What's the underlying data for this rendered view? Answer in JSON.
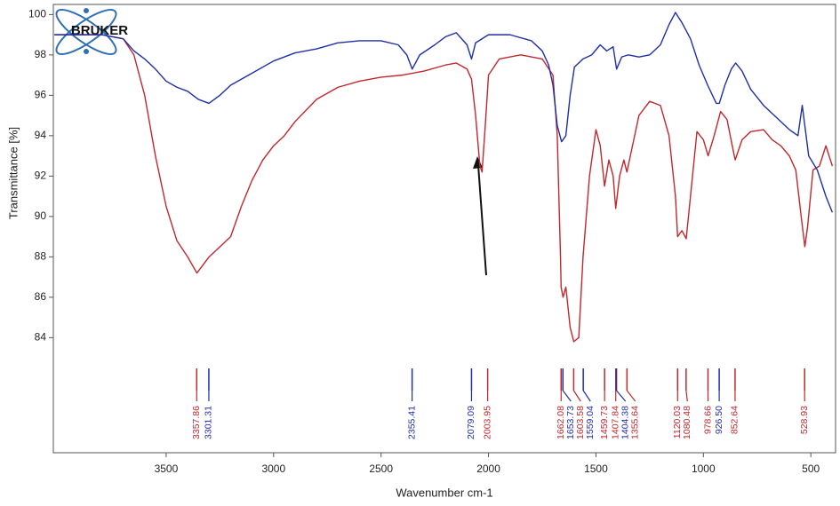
{
  "chart_data": {
    "type": "line",
    "logo_text": "BRUKER",
    "x_label": "Wavenumber cm-1",
    "y_label": "Transmittance [%]",
    "xlim": [
      4025,
      385
    ],
    "ylim": [
      78.3,
      100.5
    ],
    "xticks": [
      3500,
      3000,
      2500,
      2000,
      1500,
      1000,
      500
    ],
    "yticks": [
      84,
      86,
      88,
      90,
      92,
      94,
      96,
      98,
      100
    ],
    "series": [
      {
        "color": "#c0282d",
        "x": [
          4020,
          3800,
          3700,
          3650,
          3600,
          3550,
          3500,
          3450,
          3400,
          3357,
          3300,
          3250,
          3200,
          3150,
          3100,
          3050,
          3000,
          2950,
          2900,
          2800,
          2700,
          2600,
          2500,
          2400,
          2300,
          2200,
          2150,
          2100,
          2079,
          2060,
          2040,
          2030,
          2015,
          2000,
          1950,
          1850,
          1750,
          1700,
          1680,
          1665,
          1662,
          1653,
          1640,
          1620,
          1603,
          1580,
          1560,
          1530,
          1500,
          1480,
          1460,
          1440,
          1420,
          1408,
          1390,
          1370,
          1356,
          1330,
          1300,
          1250,
          1200,
          1160,
          1130,
          1120,
          1100,
          1080,
          1060,
          1030,
          1000,
          978,
          950,
          920,
          890,
          860,
          852,
          820,
          780,
          720,
          680,
          640,
          600,
          570,
          545,
          528,
          515,
          490,
          460,
          430,
          400
        ],
        "values": [
          99.0,
          99.0,
          98.8,
          98.0,
          96.0,
          93.0,
          90.5,
          88.8,
          88.0,
          87.2,
          88.0,
          88.5,
          89.0,
          90.5,
          91.8,
          92.8,
          93.5,
          94.0,
          94.7,
          95.8,
          96.4,
          96.7,
          96.9,
          97.0,
          97.2,
          97.5,
          97.6,
          97.3,
          96.8,
          95.0,
          92.5,
          92.2,
          94.5,
          97.0,
          97.8,
          98.0,
          97.8,
          97.0,
          94.0,
          88.0,
          86.5,
          86.0,
          86.5,
          84.5,
          83.8,
          84.0,
          88.0,
          92.0,
          94.3,
          93.5,
          91.5,
          92.8,
          92.0,
          90.4,
          92.0,
          92.8,
          92.2,
          93.5,
          95.0,
          95.7,
          95.5,
          94.0,
          91.0,
          89.0,
          89.3,
          88.9,
          91.0,
          94.2,
          93.8,
          93.0,
          94.0,
          95.2,
          94.8,
          93.2,
          92.8,
          93.8,
          94.2,
          94.3,
          93.8,
          93.5,
          93.0,
          92.3,
          90.0,
          88.5,
          89.5,
          92.3,
          92.5,
          93.5,
          92.5
        ],
        "peaks": [
          3357.86,
          2003.95,
          1662.08,
          1603.58,
          1459.73,
          1407.84,
          1355.64,
          1120.03,
          1080.48,
          978.66,
          852.64,
          528.93
        ]
      },
      {
        "color": "#1f2fa8",
        "x": [
          4020,
          3800,
          3700,
          3650,
          3600,
          3550,
          3500,
          3450,
          3400,
          3350,
          3301,
          3250,
          3200,
          3100,
          3000,
          2900,
          2800,
          2700,
          2600,
          2500,
          2420,
          2380,
          2355,
          2320,
          2250,
          2200,
          2150,
          2100,
          2079,
          2060,
          2000,
          1900,
          1800,
          1750,
          1720,
          1700,
          1680,
          1660,
          1640,
          1620,
          1600,
          1560,
          1520,
          1480,
          1450,
          1420,
          1404,
          1380,
          1350,
          1300,
          1250,
          1200,
          1160,
          1130,
          1100,
          1060,
          1020,
          980,
          940,
          926,
          900,
          870,
          850,
          820,
          780,
          720,
          650,
          600,
          560,
          540,
          528,
          510,
          470,
          430,
          400
        ],
        "values": [
          99.0,
          99.0,
          98.8,
          98.2,
          97.8,
          97.3,
          96.7,
          96.4,
          96.2,
          95.8,
          95.6,
          96.0,
          96.5,
          97.1,
          97.7,
          98.1,
          98.3,
          98.6,
          98.7,
          98.7,
          98.5,
          98.0,
          97.3,
          98.0,
          98.5,
          98.9,
          99.1,
          98.5,
          97.8,
          98.6,
          99.0,
          99.0,
          98.7,
          98.2,
          97.5,
          96.5,
          94.5,
          93.7,
          94.0,
          96.0,
          97.4,
          97.8,
          98.0,
          98.5,
          98.2,
          98.4,
          97.3,
          97.9,
          98.0,
          97.9,
          98.0,
          98.5,
          99.5,
          100.1,
          99.6,
          98.8,
          97.5,
          96.5,
          95.6,
          95.6,
          96.5,
          97.3,
          97.6,
          97.2,
          96.3,
          95.5,
          94.8,
          94.3,
          94.0,
          95.5,
          94.5,
          93.0,
          92.3,
          91.0,
          90.2
        ],
        "peaks": [
          3301.31,
          2355.41,
          2079.09,
          1653.73,
          1559.04,
          1404.38,
          {
            "value": 926.5,
            "label": "926.50"
          }
        ]
      }
    ]
  }
}
